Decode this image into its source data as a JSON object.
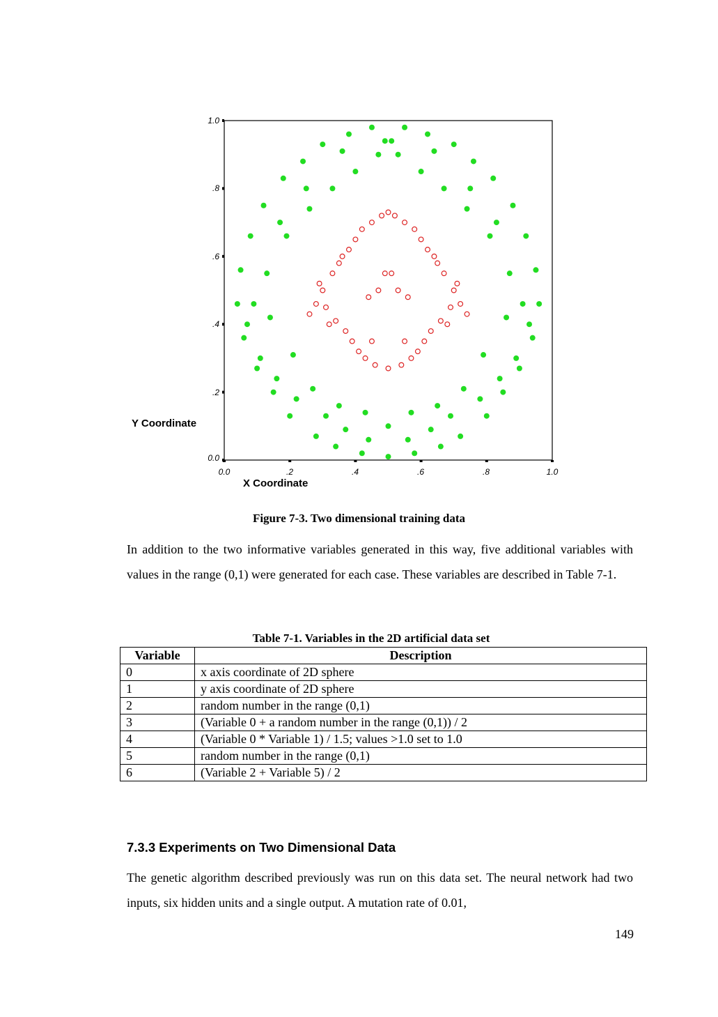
{
  "figure": {
    "caption": "Figure 7-3. Two dimensional training data",
    "chart_data": {
      "type": "scatter",
      "title": "",
      "xlabel": "X Coordinate",
      "ylabel": "Y Coordinate",
      "xlim": [
        0,
        1
      ],
      "ylim": [
        0,
        1
      ],
      "x_ticks": [
        "0.0",
        ".2",
        ".4",
        ".6",
        ".8",
        "1.0"
      ],
      "y_ticks": [
        "0.0",
        ".2",
        ".4",
        ".6",
        ".8",
        "1.0"
      ],
      "grid": false,
      "legend": "none",
      "series": [
        {
          "marker": "filled-circle",
          "color": "#22dd22",
          "description_of_distribution": "outer annulus, radius approx 0.25 to 0.5 around center (0.5, 0.5)",
          "x": [
            0.45,
            0.55,
            0.62,
            0.38,
            0.7,
            0.3,
            0.76,
            0.24,
            0.82,
            0.18,
            0.12,
            0.88,
            0.08,
            0.92,
            0.05,
            0.95,
            0.04,
            0.96,
            0.06,
            0.94,
            0.1,
            0.9,
            0.15,
            0.85,
            0.2,
            0.8,
            0.28,
            0.72,
            0.34,
            0.66,
            0.42,
            0.58,
            0.5,
            0.47,
            0.53,
            0.4,
            0.6,
            0.33,
            0.67,
            0.26,
            0.74,
            0.19,
            0.81,
            0.13,
            0.87,
            0.09,
            0.91,
            0.07,
            0.93,
            0.11,
            0.89,
            0.16,
            0.84,
            0.22,
            0.78,
            0.31,
            0.69,
            0.37,
            0.63,
            0.44,
            0.56,
            0.5,
            0.49,
            0.51,
            0.36,
            0.64,
            0.25,
            0.75,
            0.17,
            0.83,
            0.14,
            0.86,
            0.21,
            0.79,
            0.27,
            0.73,
            0.35,
            0.65,
            0.43,
            0.57
          ],
          "y": [
            0.98,
            0.98,
            0.96,
            0.96,
            0.93,
            0.93,
            0.88,
            0.88,
            0.83,
            0.83,
            0.75,
            0.75,
            0.66,
            0.66,
            0.56,
            0.56,
            0.46,
            0.46,
            0.36,
            0.36,
            0.27,
            0.27,
            0.2,
            0.2,
            0.13,
            0.13,
            0.07,
            0.07,
            0.04,
            0.04,
            0.02,
            0.02,
            0.01,
            0.9,
            0.9,
            0.85,
            0.85,
            0.8,
            0.8,
            0.74,
            0.74,
            0.66,
            0.66,
            0.55,
            0.55,
            0.46,
            0.46,
            0.4,
            0.4,
            0.3,
            0.3,
            0.24,
            0.24,
            0.18,
            0.18,
            0.13,
            0.13,
            0.09,
            0.09,
            0.06,
            0.06,
            0.1,
            0.94,
            0.94,
            0.91,
            0.91,
            0.8,
            0.8,
            0.7,
            0.7,
            0.42,
            0.42,
            0.31,
            0.31,
            0.21,
            0.21,
            0.16,
            0.16,
            0.14,
            0.14
          ]
        },
        {
          "marker": "open-circle",
          "color": "#dd2222",
          "description_of_distribution": "inner disc, radius approx 0.25 around center (0.5, 0.5)",
          "x": [
            0.5,
            0.48,
            0.52,
            0.45,
            0.55,
            0.42,
            0.58,
            0.4,
            0.6,
            0.38,
            0.62,
            0.35,
            0.65,
            0.33,
            0.67,
            0.3,
            0.7,
            0.28,
            0.72,
            0.26,
            0.74,
            0.5,
            0.46,
            0.54,
            0.43,
            0.57,
            0.41,
            0.59,
            0.39,
            0.61,
            0.37,
            0.63,
            0.34,
            0.66,
            0.31,
            0.69,
            0.29,
            0.71,
            0.47,
            0.53,
            0.44,
            0.56,
            0.49,
            0.51,
            0.36,
            0.64,
            0.32,
            0.68,
            0.45,
            0.55
          ],
          "y": [
            0.73,
            0.72,
            0.72,
            0.7,
            0.7,
            0.68,
            0.68,
            0.65,
            0.65,
            0.62,
            0.62,
            0.58,
            0.58,
            0.55,
            0.55,
            0.5,
            0.5,
            0.46,
            0.46,
            0.43,
            0.43,
            0.27,
            0.28,
            0.28,
            0.3,
            0.3,
            0.32,
            0.32,
            0.35,
            0.35,
            0.38,
            0.38,
            0.41,
            0.41,
            0.45,
            0.45,
            0.52,
            0.52,
            0.5,
            0.5,
            0.48,
            0.48,
            0.55,
            0.55,
            0.6,
            0.6,
            0.4,
            0.4,
            0.35,
            0.35
          ]
        }
      ]
    }
  },
  "paragraph1": "In addition to the two informative variables generated in this way, five additional variables with values in the range (0,1) were generated for each case. These variables are described in Table 7-1.",
  "table": {
    "title": "Table 7-1. Variables in the 2D artificial data set",
    "headers": [
      "Variable",
      "Description"
    ],
    "rows": [
      [
        "0",
        "x axis coordinate of 2D sphere"
      ],
      [
        "1",
        "y axis coordinate of 2D sphere"
      ],
      [
        "2",
        "random number in the range (0,1)"
      ],
      [
        "3",
        "(Variable 0 + a random number in the range (0,1)) / 2"
      ],
      [
        "4",
        "(Variable 0 * Variable 1) / 1.5; values >1.0 set to 1.0"
      ],
      [
        "5",
        "random number in the range (0,1)"
      ],
      [
        "6",
        "(Variable 2 + Variable 5) / 2"
      ]
    ]
  },
  "section_heading": "7.3.3 Experiments on Two Dimensional Data",
  "paragraph2": "The genetic algorithm described previously was run on this data set. The neural network had two inputs, six hidden units and a single output. A mutation rate of 0.01,",
  "page_number": "149"
}
